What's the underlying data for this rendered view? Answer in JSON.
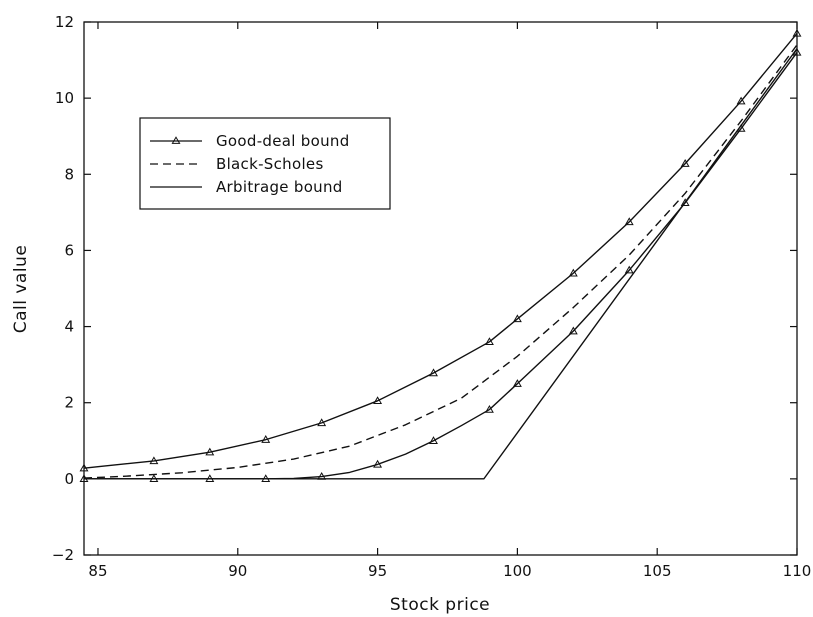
{
  "chart_data": {
    "type": "line",
    "title": "",
    "xlabel": "Stock price",
    "ylabel": "Call value",
    "xlim": [
      84.5,
      110
    ],
    "ylim": [
      -2,
      12
    ],
    "x_ticks": [
      85,
      90,
      95,
      100,
      105,
      110
    ],
    "y_ticks": [
      -2,
      0,
      2,
      4,
      6,
      8,
      10,
      12
    ],
    "grid": false,
    "legend_position": "upper-left",
    "series": [
      {
        "name": "Good-deal bound",
        "style": "solid-triangle-markers",
        "color": "#111111",
        "bound": "upper",
        "x": [
          84.5,
          85,
          87,
          89,
          91,
          93,
          95,
          97,
          99,
          100,
          102,
          104,
          106,
          108,
          110
        ],
        "values": [
          0.28,
          0.32,
          0.47,
          0.7,
          1.03,
          1.47,
          2.05,
          2.78,
          3.6,
          4.2,
          5.4,
          6.75,
          8.28,
          9.92,
          11.7
        ]
      },
      {
        "name": "Good-deal bound",
        "style": "solid-triangle-markers",
        "color": "#111111",
        "bound": "lower",
        "x": [
          84.5,
          85,
          87,
          89,
          91,
          92,
          93,
          94,
          95,
          96,
          97,
          98,
          99,
          100,
          102,
          104,
          106,
          108,
          110
        ],
        "values": [
          0,
          0,
          0,
          0,
          0,
          0.01,
          0.06,
          0.17,
          0.38,
          0.65,
          1.0,
          1.4,
          1.82,
          2.5,
          3.88,
          5.48,
          7.25,
          9.2,
          11.2
        ]
      },
      {
        "name": "Black-Scholes",
        "style": "dashed",
        "color": "#111111",
        "x": [
          84.5,
          86,
          88,
          90,
          92,
          94,
          96,
          98,
          100,
          102,
          104,
          106,
          108,
          110
        ],
        "values": [
          0.02,
          0.07,
          0.16,
          0.3,
          0.52,
          0.86,
          1.42,
          2.12,
          3.22,
          4.5,
          5.88,
          7.5,
          9.4,
          11.4
        ]
      },
      {
        "name": "Arbitrage bound",
        "style": "solid",
        "color": "#111111",
        "x": [
          84.5,
          98.8,
          110
        ],
        "values": [
          0,
          0,
          11.3
        ]
      }
    ],
    "markers_upper_x": [
      84.5,
      87,
      89,
      91,
      93,
      95,
      97,
      99,
      100,
      102,
      104,
      106,
      108,
      110
    ],
    "markers_lower_x": [
      84.5,
      87,
      89,
      91,
      93,
      95,
      97,
      99,
      100,
      102,
      104,
      106,
      108,
      110
    ],
    "legend": [
      {
        "label": "Good-deal bound",
        "style": "solid-triangle-markers"
      },
      {
        "label": "Black-Scholes",
        "style": "dashed"
      },
      {
        "label": "Arbitrage bound",
        "style": "solid"
      }
    ]
  }
}
